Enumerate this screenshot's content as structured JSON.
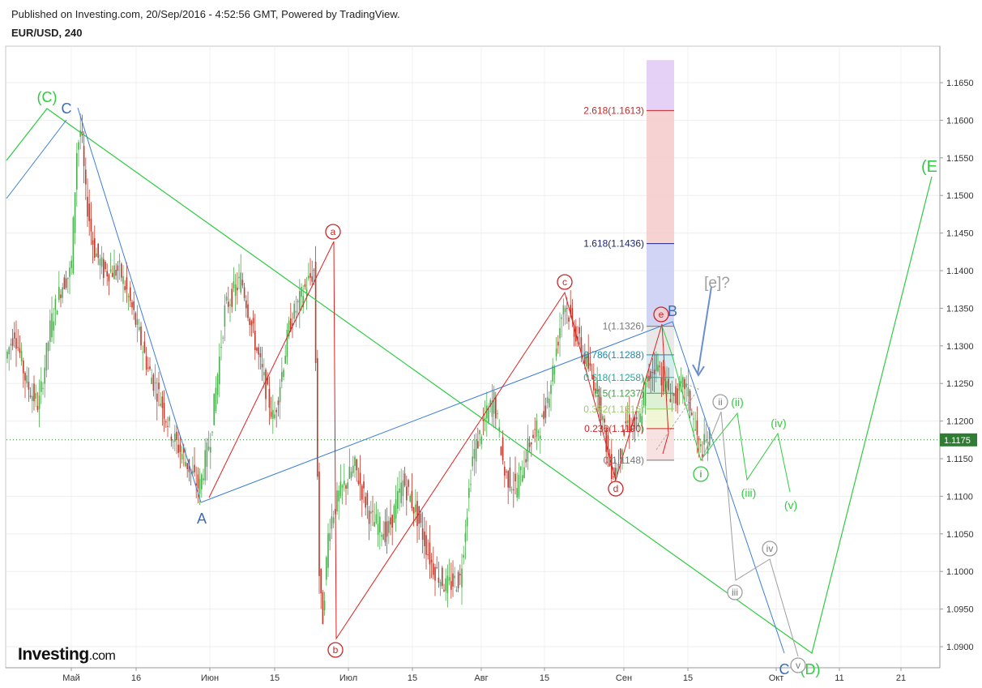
{
  "header": {
    "published": "Published on Investing.com, 20/Sep/2016 - 4:52:56 GMT, Powered by TradingView.",
    "symbol": "EUR/USD, 240"
  },
  "logo": {
    "main": "Investing",
    "suffix": ".com"
  },
  "chart_data": {
    "type": "candlestick",
    "symbol": "EUR/USD",
    "timeframe": "240",
    "ylim": [
      1.0875,
      1.17
    ],
    "y_ticks": [
      "1.1650",
      "1.1600",
      "1.1550",
      "1.1500",
      "1.1450",
      "1.1400",
      "1.1350",
      "1.1300",
      "1.1250",
      "1.1200",
      "1.1150",
      "1.1100",
      "1.1050",
      "1.1000",
      "1.0950",
      "1.0900"
    ],
    "x_ticks": [
      "Май",
      "16",
      "Июн",
      "15",
      "Июл",
      "15",
      "Авг",
      "15",
      "Сен",
      "15",
      "Окт",
      "11",
      "21"
    ],
    "last_price": "1.1175",
    "fibonacci": [
      {
        "label": "2.618(1.1613)",
        "value": 1.1613,
        "color": "#c62828"
      },
      {
        "label": "1.618(1.1436)",
        "value": 1.1436,
        "color": "#1a237e"
      },
      {
        "label": "1(1.1326)",
        "value": 1.1326,
        "color": "#777777"
      },
      {
        "label": "0.786(1.1288)",
        "value": 1.1288,
        "color": "#1e88a8"
      },
      {
        "label": "0.618(1.1258)",
        "value": 1.1258,
        "color": "#26a69a"
      },
      {
        "label": "0.5(1.1237)",
        "value": 1.1237,
        "color": "#43a047"
      },
      {
        "label": "0.382(1.1216)",
        "value": 1.1216,
        "color": "#9ccc65"
      },
      {
        "label": "0.236(1.1190)",
        "value": 1.119,
        "color": "#c62828"
      },
      {
        "label": "0(1.1148)",
        "value": 1.1148,
        "color": "#777777"
      }
    ],
    "wave_labels": {
      "primary": [
        "(C)",
        "(D)",
        "(E"
      ],
      "blue": [
        "C",
        "A",
        "B",
        "C"
      ],
      "red_circled": [
        "a",
        "b",
        "c",
        "d",
        "e"
      ],
      "green": [
        "i",
        "(ii)",
        "(iii)",
        "(iv)",
        "(v)"
      ],
      "gray_circled": [
        "ii",
        "iii",
        "iv",
        "v"
      ],
      "question": "[e]?"
    }
  },
  "colors": {
    "up": "#4caf50",
    "down": "#c0392b",
    "green_line": "#2ecc40",
    "blue_line": "#3b7dd8",
    "red_line": "#e02020",
    "gray_line": "#9e9e9e",
    "price_tag": "#2e7d32"
  }
}
